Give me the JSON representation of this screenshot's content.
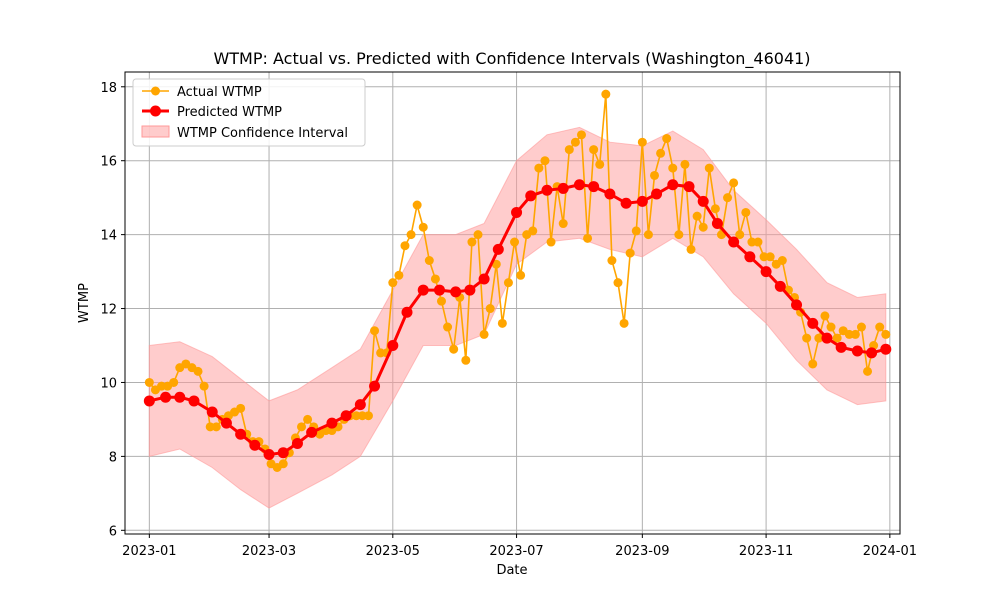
{
  "chart_data": {
    "type": "line",
    "title": "WTMP: Actual vs. Predicted with Confidence Intervals (Washington_46041)",
    "xlabel": "Date",
    "ylabel": "WTMP",
    "xlim": [
      "2022-12-20",
      "2024-01-06"
    ],
    "ylim": [
      5.9,
      18.4
    ],
    "x_ticks": [
      "2023-01",
      "2023-03",
      "2023-05",
      "2023-07",
      "2023-09",
      "2023-11",
      "2024-01"
    ],
    "y_ticks": [
      6,
      8,
      10,
      12,
      14,
      16,
      18
    ],
    "grid": true,
    "legend_position": "top-left",
    "series": [
      {
        "name": "Actual WTMP",
        "kind": "line-marker",
        "color": "#FFA500",
        "points": [
          [
            "2023-01-01",
            10.0
          ],
          [
            "2023-01-04",
            9.8
          ],
          [
            "2023-01-07",
            9.9
          ],
          [
            "2023-01-10",
            9.9
          ],
          [
            "2023-01-13",
            10.0
          ],
          [
            "2023-01-16",
            10.4
          ],
          [
            "2023-01-19",
            10.5
          ],
          [
            "2023-01-22",
            10.4
          ],
          [
            "2023-01-25",
            10.3
          ],
          [
            "2023-01-28",
            9.9
          ],
          [
            "2023-01-31",
            8.8
          ],
          [
            "2023-02-03",
            8.8
          ],
          [
            "2023-02-06",
            9.0
          ],
          [
            "2023-02-09",
            9.1
          ],
          [
            "2023-02-12",
            9.2
          ],
          [
            "2023-02-15",
            9.3
          ],
          [
            "2023-02-18",
            8.6
          ],
          [
            "2023-02-21",
            8.4
          ],
          [
            "2023-02-24",
            8.4
          ],
          [
            "2023-02-27",
            8.2
          ],
          [
            "2023-03-02",
            7.8
          ],
          [
            "2023-03-05",
            7.7
          ],
          [
            "2023-03-08",
            7.8
          ],
          [
            "2023-03-11",
            8.1
          ],
          [
            "2023-03-14",
            8.5
          ],
          [
            "2023-03-17",
            8.8
          ],
          [
            "2023-03-20",
            9.0
          ],
          [
            "2023-03-23",
            8.8
          ],
          [
            "2023-03-26",
            8.6
          ],
          [
            "2023-03-29",
            8.7
          ],
          [
            "2023-04-01",
            8.7
          ],
          [
            "2023-04-04",
            8.8
          ],
          [
            "2023-04-07",
            9.0
          ],
          [
            "2023-04-10",
            9.1
          ],
          [
            "2023-04-13",
            9.1
          ],
          [
            "2023-04-16",
            9.1
          ],
          [
            "2023-04-19",
            9.1
          ],
          [
            "2023-04-22",
            11.4
          ],
          [
            "2023-04-25",
            10.8
          ],
          [
            "2023-04-28",
            10.8
          ],
          [
            "2023-05-01",
            12.7
          ],
          [
            "2023-05-04",
            12.9
          ],
          [
            "2023-05-07",
            13.7
          ],
          [
            "2023-05-10",
            14.0
          ],
          [
            "2023-05-13",
            14.8
          ],
          [
            "2023-05-16",
            14.2
          ],
          [
            "2023-05-19",
            13.3
          ],
          [
            "2023-05-22",
            12.8
          ],
          [
            "2023-05-25",
            12.2
          ],
          [
            "2023-05-28",
            11.5
          ],
          [
            "2023-05-31",
            10.9
          ],
          [
            "2023-06-03",
            12.3
          ],
          [
            "2023-06-06",
            10.6
          ],
          [
            "2023-06-09",
            13.8
          ],
          [
            "2023-06-12",
            14.0
          ],
          [
            "2023-06-15",
            11.3
          ],
          [
            "2023-06-18",
            12.0
          ],
          [
            "2023-06-21",
            13.2
          ],
          [
            "2023-06-24",
            11.6
          ],
          [
            "2023-06-27",
            12.7
          ],
          [
            "2023-06-30",
            13.8
          ],
          [
            "2023-07-03",
            12.9
          ],
          [
            "2023-07-06",
            14.0
          ],
          [
            "2023-07-09",
            14.1
          ],
          [
            "2023-07-12",
            15.8
          ],
          [
            "2023-07-15",
            16.0
          ],
          [
            "2023-07-18",
            13.8
          ],
          [
            "2023-07-21",
            15.3
          ],
          [
            "2023-07-24",
            14.3
          ],
          [
            "2023-07-27",
            16.3
          ],
          [
            "2023-07-30",
            16.5
          ],
          [
            "2023-08-02",
            16.7
          ],
          [
            "2023-08-05",
            13.9
          ],
          [
            "2023-08-08",
            16.3
          ],
          [
            "2023-08-11",
            15.9
          ],
          [
            "2023-08-14",
            17.8
          ],
          [
            "2023-08-17",
            13.3
          ],
          [
            "2023-08-20",
            12.7
          ],
          [
            "2023-08-23",
            11.6
          ],
          [
            "2023-08-26",
            13.5
          ],
          [
            "2023-08-29",
            14.1
          ],
          [
            "2023-09-01",
            16.5
          ],
          [
            "2023-09-04",
            14.0
          ],
          [
            "2023-09-07",
            15.6
          ],
          [
            "2023-09-10",
            16.2
          ],
          [
            "2023-09-13",
            16.6
          ],
          [
            "2023-09-16",
            15.8
          ],
          [
            "2023-09-19",
            14.0
          ],
          [
            "2023-09-22",
            15.9
          ],
          [
            "2023-09-25",
            13.6
          ],
          [
            "2023-09-28",
            14.5
          ],
          [
            "2023-10-01",
            14.2
          ],
          [
            "2023-10-04",
            15.8
          ],
          [
            "2023-10-07",
            14.7
          ],
          [
            "2023-10-10",
            14.0
          ],
          [
            "2023-10-13",
            15.0
          ],
          [
            "2023-10-16",
            15.4
          ],
          [
            "2023-10-19",
            14.0
          ],
          [
            "2023-10-22",
            14.6
          ],
          [
            "2023-10-25",
            13.8
          ],
          [
            "2023-10-28",
            13.8
          ],
          [
            "2023-10-31",
            13.4
          ],
          [
            "2023-11-03",
            13.4
          ],
          [
            "2023-11-06",
            13.2
          ],
          [
            "2023-11-09",
            13.3
          ],
          [
            "2023-11-12",
            12.5
          ],
          [
            "2023-11-15",
            12.3
          ],
          [
            "2023-11-18",
            11.9
          ],
          [
            "2023-11-21",
            11.2
          ],
          [
            "2023-11-24",
            10.5
          ],
          [
            "2023-11-27",
            11.2
          ],
          [
            "2023-11-30",
            11.8
          ],
          [
            "2023-12-03",
            11.5
          ],
          [
            "2023-12-06",
            11.2
          ],
          [
            "2023-12-09",
            11.4
          ],
          [
            "2023-12-12",
            11.3
          ],
          [
            "2023-12-15",
            11.3
          ],
          [
            "2023-12-18",
            11.5
          ],
          [
            "2023-12-21",
            10.3
          ],
          [
            "2023-12-24",
            11.0
          ],
          [
            "2023-12-27",
            11.5
          ],
          [
            "2023-12-30",
            11.3
          ]
        ]
      },
      {
        "name": "Predicted WTMP",
        "kind": "line-marker",
        "color": "#FF0000",
        "points": [
          [
            "2023-01-01",
            9.5
          ],
          [
            "2023-01-09",
            9.6
          ],
          [
            "2023-01-16",
            9.6
          ],
          [
            "2023-01-23",
            9.5
          ],
          [
            "2023-02-01",
            9.2
          ],
          [
            "2023-02-08",
            8.9
          ],
          [
            "2023-02-15",
            8.6
          ],
          [
            "2023-02-22",
            8.3
          ],
          [
            "2023-03-01",
            8.05
          ],
          [
            "2023-03-08",
            8.1
          ],
          [
            "2023-03-15",
            8.35
          ],
          [
            "2023-03-22",
            8.65
          ],
          [
            "2023-04-01",
            8.9
          ],
          [
            "2023-04-08",
            9.1
          ],
          [
            "2023-04-15",
            9.4
          ],
          [
            "2023-04-22",
            9.9
          ],
          [
            "2023-05-01",
            11.0
          ],
          [
            "2023-05-08",
            11.9
          ],
          [
            "2023-05-16",
            12.5
          ],
          [
            "2023-05-24",
            12.5
          ],
          [
            "2023-06-01",
            12.45
          ],
          [
            "2023-06-08",
            12.5
          ],
          [
            "2023-06-15",
            12.8
          ],
          [
            "2023-06-22",
            13.6
          ],
          [
            "2023-07-01",
            14.6
          ],
          [
            "2023-07-08",
            15.05
          ],
          [
            "2023-07-16",
            15.2
          ],
          [
            "2023-07-24",
            15.25
          ],
          [
            "2023-08-01",
            15.35
          ],
          [
            "2023-08-08",
            15.3
          ],
          [
            "2023-08-16",
            15.1
          ],
          [
            "2023-08-24",
            14.85
          ],
          [
            "2023-09-01",
            14.9
          ],
          [
            "2023-09-08",
            15.1
          ],
          [
            "2023-09-16",
            15.35
          ],
          [
            "2023-09-24",
            15.3
          ],
          [
            "2023-10-01",
            14.9
          ],
          [
            "2023-10-08",
            14.3
          ],
          [
            "2023-10-16",
            13.8
          ],
          [
            "2023-10-24",
            13.4
          ],
          [
            "2023-11-01",
            13.0
          ],
          [
            "2023-11-08",
            12.6
          ],
          [
            "2023-11-16",
            12.1
          ],
          [
            "2023-11-24",
            11.6
          ],
          [
            "2023-12-01",
            11.2
          ],
          [
            "2023-12-08",
            10.95
          ],
          [
            "2023-12-16",
            10.85
          ],
          [
            "2023-12-23",
            10.8
          ],
          [
            "2023-12-30",
            10.9
          ]
        ]
      },
      {
        "name": "WTMP Confidence Interval",
        "kind": "band",
        "color": "#FF9999",
        "points": [
          [
            "2023-01-01",
            8.0,
            11.0
          ],
          [
            "2023-01-16",
            8.2,
            11.1
          ],
          [
            "2023-02-01",
            7.7,
            10.7
          ],
          [
            "2023-02-15",
            7.1,
            10.1
          ],
          [
            "2023-03-01",
            6.6,
            9.5
          ],
          [
            "2023-03-15",
            7.0,
            9.8
          ],
          [
            "2023-04-01",
            7.5,
            10.4
          ],
          [
            "2023-04-15",
            8.0,
            10.9
          ],
          [
            "2023-05-01",
            9.5,
            12.5
          ],
          [
            "2023-05-16",
            11.0,
            14.0
          ],
          [
            "2023-06-01",
            11.0,
            14.0
          ],
          [
            "2023-06-15",
            11.3,
            14.3
          ],
          [
            "2023-07-01",
            13.2,
            16.0
          ],
          [
            "2023-07-16",
            13.8,
            16.7
          ],
          [
            "2023-08-01",
            13.9,
            16.9
          ],
          [
            "2023-08-16",
            13.6,
            16.5
          ],
          [
            "2023-09-01",
            13.4,
            16.4
          ],
          [
            "2023-09-16",
            13.9,
            16.8
          ],
          [
            "2023-10-01",
            13.4,
            16.3
          ],
          [
            "2023-10-16",
            12.4,
            15.2
          ],
          [
            "2023-11-01",
            11.6,
            14.4
          ],
          [
            "2023-11-16",
            10.6,
            13.6
          ],
          [
            "2023-12-01",
            9.8,
            12.7
          ],
          [
            "2023-12-16",
            9.4,
            12.3
          ],
          [
            "2023-12-30",
            9.5,
            12.4
          ]
        ]
      }
    ]
  }
}
